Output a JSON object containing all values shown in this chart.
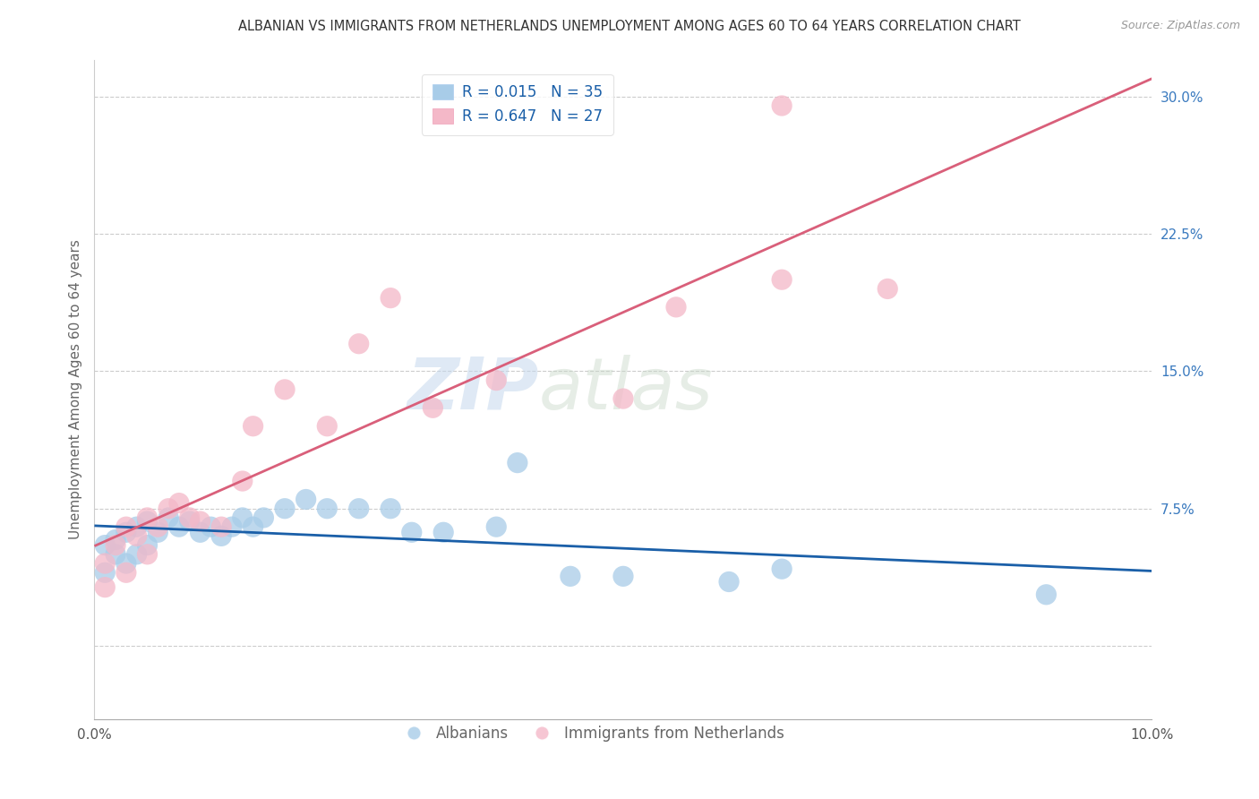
{
  "title": "ALBANIAN VS IMMIGRANTS FROM NETHERLANDS UNEMPLOYMENT AMONG AGES 60 TO 64 YEARS CORRELATION CHART",
  "source": "Source: ZipAtlas.com",
  "ylabel": "Unemployment Among Ages 60 to 64 years",
  "xlim": [
    0.0,
    0.1
  ],
  "ylim": [
    -0.04,
    0.32
  ],
  "xticks": [
    0.0,
    0.01,
    0.02,
    0.03,
    0.04,
    0.05,
    0.06,
    0.07,
    0.08,
    0.09,
    0.1
  ],
  "xticklabels": [
    "0.0%",
    "",
    "",
    "",
    "",
    "",
    "",
    "",
    "",
    "",
    "10.0%"
  ],
  "yticks": [
    0.0,
    0.075,
    0.15,
    0.225,
    0.3
  ],
  "yticklabels": [
    "",
    "7.5%",
    "15.0%",
    "22.5%",
    "30.0%"
  ],
  "grid_color": "#cccccc",
  "watermark_zip": "ZIP",
  "watermark_atlas": "atlas",
  "legend_r1": "R = 0.015",
  "legend_n1": "N = 35",
  "legend_r2": "R = 0.647",
  "legend_n2": "N = 27",
  "color_blue": "#a8cce8",
  "color_pink": "#f4b8c8",
  "line_blue": "#1a5fa8",
  "line_pink": "#d95f7a",
  "albanians_x": [
    0.001,
    0.001,
    0.002,
    0.002,
    0.003,
    0.003,
    0.004,
    0.004,
    0.005,
    0.005,
    0.006,
    0.007,
    0.008,
    0.009,
    0.01,
    0.011,
    0.012,
    0.013,
    0.014,
    0.015,
    0.016,
    0.018,
    0.02,
    0.022,
    0.025,
    0.028,
    0.03,
    0.033,
    0.038,
    0.04,
    0.045,
    0.05,
    0.06,
    0.065,
    0.09
  ],
  "albanians_y": [
    0.055,
    0.04,
    0.058,
    0.05,
    0.062,
    0.045,
    0.065,
    0.05,
    0.068,
    0.055,
    0.062,
    0.07,
    0.065,
    0.068,
    0.062,
    0.065,
    0.06,
    0.065,
    0.07,
    0.065,
    0.07,
    0.075,
    0.08,
    0.075,
    0.075,
    0.075,
    0.062,
    0.062,
    0.065,
    0.1,
    0.038,
    0.038,
    0.035,
    0.042,
    0.028
  ],
  "netherlands_x": [
    0.001,
    0.001,
    0.002,
    0.003,
    0.003,
    0.004,
    0.005,
    0.005,
    0.006,
    0.007,
    0.008,
    0.009,
    0.01,
    0.012,
    0.014,
    0.015,
    0.018,
    0.022,
    0.025,
    0.028,
    0.032,
    0.038,
    0.05,
    0.055,
    0.065,
    0.075,
    0.065
  ],
  "netherlands_y": [
    0.045,
    0.032,
    0.055,
    0.065,
    0.04,
    0.06,
    0.07,
    0.05,
    0.065,
    0.075,
    0.078,
    0.07,
    0.068,
    0.065,
    0.09,
    0.12,
    0.14,
    0.12,
    0.165,
    0.19,
    0.13,
    0.145,
    0.135,
    0.185,
    0.295,
    0.195,
    0.2
  ]
}
